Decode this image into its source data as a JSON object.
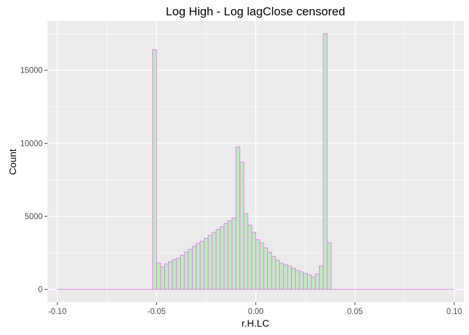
{
  "chart_data": {
    "type": "bar",
    "subtype": "histogram",
    "title": "Log High - Log lagClose censored",
    "xlabel": "r.H.LC",
    "ylabel": "Count",
    "xlim": [
      -0.105,
      0.105
    ],
    "ylim": [
      -875,
      18375
    ],
    "x_ticks": [
      -0.1,
      -0.05,
      0.0,
      0.05,
      0.1
    ],
    "x_tick_labels": [
      "-0.10",
      "-0.05",
      "0.00",
      "0.05",
      "0.10"
    ],
    "y_ticks": [
      0,
      5000,
      10000,
      15000
    ],
    "y_tick_labels": [
      "0",
      "5000",
      "10000",
      "15000"
    ],
    "grid": true,
    "legend": "none",
    "bin_width": 0.002,
    "bin_start": -0.1,
    "counts": [
      0,
      0,
      0,
      0,
      0,
      0,
      0,
      0,
      0,
      0,
      0,
      0,
      0,
      0,
      0,
      0,
      0,
      0,
      0,
      0,
      0,
      0,
      0,
      0,
      16400,
      1800,
      1550,
      1750,
      1900,
      2050,
      2150,
      2350,
      2550,
      2750,
      2950,
      3150,
      3300,
      3500,
      3700,
      3900,
      4100,
      4300,
      4500,
      4700,
      4900,
      9750,
      8700,
      5200,
      4400,
      3900,
      3400,
      3200,
      2850,
      2550,
      2250,
      2000,
      1800,
      1700,
      1600,
      1450,
      1300,
      1200,
      1100,
      1000,
      850,
      1050,
      1600,
      17500,
      3200,
      0,
      0,
      0,
      0,
      0,
      0,
      0,
      0,
      0,
      0,
      0,
      0,
      0,
      0,
      0,
      0,
      0,
      0,
      0,
      0,
      0,
      0,
      0,
      0,
      0,
      0,
      0,
      0,
      0,
      0,
      0
    ],
    "colors": {
      "fill": "#c2e8c4",
      "stroke": "#da80e2",
      "panel": "#ebebeb",
      "grid": "#ffffff"
    }
  }
}
